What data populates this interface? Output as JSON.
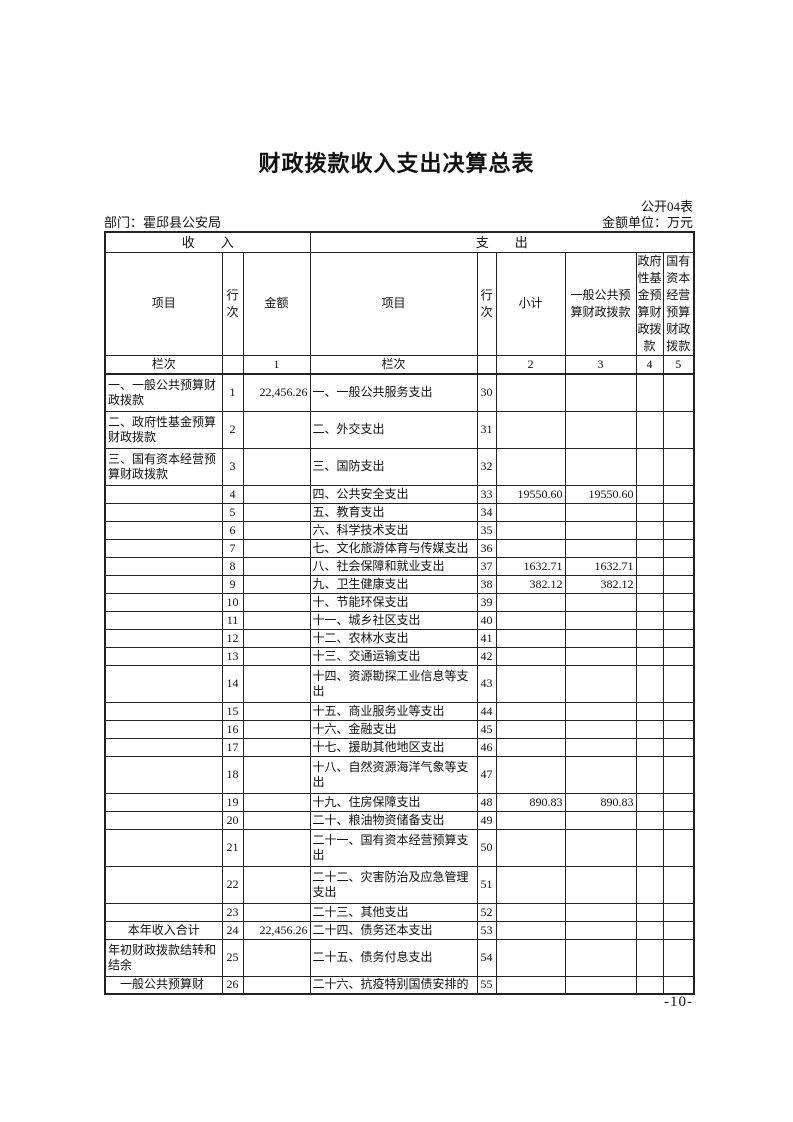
{
  "document": {
    "title": "财政拨款收入支出决算总表",
    "form_code": "公开04表",
    "department": "部门：霍邱县公安局",
    "unit": "金额单位：万元",
    "page_number": "-10-"
  },
  "table": {
    "sections": {
      "income": "收　　入",
      "expenditure": "支　　出"
    },
    "headers": {
      "income_item": "项目",
      "income_line": "行次",
      "income_amount": "金额",
      "exp_item": "项目",
      "exp_line": "行次",
      "subtotal": "小计",
      "general_budget": "一般公共预算财政拨款",
      "gov_fund_budget": "政府性基金预算财政拨款",
      "state_capital_budget": "国有资本经营预算财政拨款"
    },
    "column_index_row": {
      "income_item": "栏次",
      "income_line": "",
      "income_amount": "1",
      "exp_item": "栏次",
      "exp_line": "",
      "subtotal": "2",
      "general": "3",
      "fund": "4",
      "capital": "5"
    },
    "rows": [
      {
        "income_item": "一、一般公共预算财政拨款",
        "income_line": "1",
        "income_amount": "22,456.26",
        "exp_item": "一、一般公共服务支出",
        "exp_line": "30",
        "tall": true
      },
      {
        "income_item": "二、政府性基金预算财政拨款",
        "income_line": "2",
        "exp_item": "二、外交支出",
        "exp_line": "31",
        "tall": true
      },
      {
        "income_item": "三、国有资本经营预算财政拨款",
        "income_line": "3",
        "exp_item": "三、国防支出",
        "exp_line": "32",
        "tall": true
      },
      {
        "income_line": "4",
        "exp_item": "四、公共安全支出",
        "exp_line": "33",
        "subtotal": "19550.60",
        "general": "19550.60"
      },
      {
        "income_line": "5",
        "exp_item": "五、教育支出",
        "exp_line": "34"
      },
      {
        "income_line": "6",
        "exp_item": "六、科学技术支出",
        "exp_line": "35"
      },
      {
        "income_line": "7",
        "exp_item": "七、文化旅游体育与传媒支出",
        "exp_line": "36"
      },
      {
        "income_line": "8",
        "exp_item": "八、社会保障和就业支出",
        "exp_line": "37",
        "subtotal": "1632.71",
        "general": "1632.71"
      },
      {
        "income_line": "9",
        "exp_item": "九、卫生健康支出",
        "exp_line": "38",
        "subtotal": "382.12",
        "general": "382.12"
      },
      {
        "income_line": "10",
        "exp_item": "十、节能环保支出",
        "exp_line": "39"
      },
      {
        "income_line": "11",
        "exp_item": "十一、城乡社区支出",
        "exp_line": "40"
      },
      {
        "income_line": "12",
        "exp_item": "十二、农林水支出",
        "exp_line": "41"
      },
      {
        "income_line": "13",
        "exp_item": "十三、交通运输支出",
        "exp_line": "42"
      },
      {
        "income_line": "14",
        "exp_item": "十四、资源勘探工业信息等支出",
        "exp_line": "43",
        "tall": true
      },
      {
        "income_line": "15",
        "exp_item": "十五、商业服务业等支出",
        "exp_line": "44"
      },
      {
        "income_line": "16",
        "exp_item": "十六、金融支出",
        "exp_line": "45"
      },
      {
        "income_line": "17",
        "exp_item": "十七、援助其他地区支出",
        "exp_line": "46"
      },
      {
        "income_line": "18",
        "exp_item": "十八、自然资源海洋气象等支出",
        "exp_line": "47",
        "tall": true
      },
      {
        "income_line": "19",
        "exp_item": "十九、住房保障支出",
        "exp_line": "48",
        "subtotal": "890.83",
        "general": "890.83"
      },
      {
        "income_line": "20",
        "exp_item": "二十、粮油物资储备支出",
        "exp_line": "49"
      },
      {
        "income_line": "21",
        "exp_item": "二十一、国有资本经营预算支出",
        "exp_line": "50",
        "tall": true
      },
      {
        "income_line": "22",
        "exp_item": "二十二、灾害防治及应急管理支出",
        "exp_line": "51",
        "tall": true
      },
      {
        "income_line": "23",
        "exp_item": "二十三、其他支出",
        "exp_line": "52"
      },
      {
        "income_item": "本年收入合计",
        "income_bold": true,
        "income_line": "24",
        "income_amount": "22,456.26",
        "exp_item": "二十四、债务还本支出",
        "exp_line": "53"
      },
      {
        "income_item": "年初财政拨款结转和结余",
        "income_line": "25",
        "exp_item": "二十五、债务付息支出",
        "exp_line": "54",
        "tall": true
      },
      {
        "income_item": "　一般公共预算财",
        "income_line": "26",
        "exp_item": "二十六、抗疫特别国债安排的",
        "exp_line": "55"
      }
    ]
  }
}
